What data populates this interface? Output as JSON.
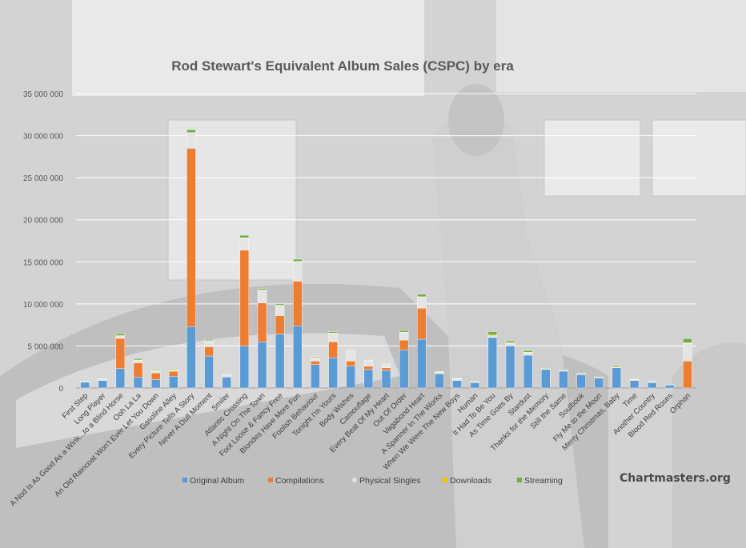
{
  "watermark": "Chartmasters.org",
  "chart_data": {
    "type": "bar",
    "stacked": true,
    "title": "Rod Stewart's Equivalent Album Sales (CSPC) by era",
    "ylim": [
      0,
      35000000
    ],
    "yticks": [
      0,
      5000000,
      10000000,
      15000000,
      20000000,
      25000000,
      30000000,
      35000000
    ],
    "ytick_labels": [
      "0",
      "5 000 000",
      "10 000 000",
      "15 000 000",
      "20 000 000",
      "25 000 000",
      "30 000 000",
      "35 000 000"
    ],
    "grid": true,
    "legend_position": "bottom",
    "categories": [
      "First Step",
      "Long Player",
      "A Nod Is As Good As a Wink...to a Blind Horse",
      "Ooh La La",
      "An Old Raincoat Won't Ever Let You Down",
      "Gasoline Alley",
      "Every Picture Tells A Story",
      "Never A Dull Moment",
      "Smiler",
      "Atlantic Crossing",
      "A Night On The Town",
      "Foot Loose & Fancy Free",
      "Blondes Have More Fun",
      "Foolish Behaviour",
      "Tonight I'm Yours",
      "Body Wishes",
      "Camouflage",
      "Every Beat Of My Heart",
      "Out Of Order",
      "Vagabond Heart",
      "A Spanner In The Works",
      "When We Were The New Boys",
      "Human",
      "It Had To Be You",
      "As Time Goes By",
      "Stardust",
      "Thanks for the Memory",
      "Still the Same",
      "Soulbook",
      "Fly Me to the Moon",
      "Merry Christmas, Baby",
      "Time",
      "Another Country",
      "Blood Red Roses",
      "Orphan"
    ],
    "series": [
      {
        "name": "Original Album",
        "color": "#5b9bd5",
        "values": [
          700000,
          900000,
          2300000,
          1300000,
          1000000,
          1400000,
          7300000,
          3800000,
          1300000,
          5000000,
          5500000,
          6400000,
          7400000,
          2800000,
          3600000,
          2600000,
          2200000,
          2100000,
          4500000,
          5800000,
          1700000,
          900000,
          650000,
          6000000,
          5000000,
          3900000,
          2200000,
          2000000,
          1600000,
          1200000,
          2400000,
          900000,
          650000,
          350000,
          0
        ]
      },
      {
        "name": "Compilations",
        "color": "#ed7d31",
        "values": [
          0,
          0,
          3600000,
          1700000,
          800000,
          600000,
          21200000,
          1100000,
          0,
          11400000,
          4600000,
          2200000,
          5300000,
          400000,
          1900000,
          600000,
          400000,
          300000,
          1200000,
          3700000,
          0,
          0,
          0,
          0,
          0,
          0,
          0,
          0,
          0,
          0,
          0,
          0,
          0,
          0,
          3200000
        ]
      },
      {
        "name": "Physical Singles",
        "color": "#e5e5e5",
        "values": [
          100000,
          250000,
          300000,
          300000,
          250000,
          150000,
          1800000,
          700000,
          300000,
          1400000,
          1500000,
          1200000,
          2300000,
          400000,
          1000000,
          1300000,
          700000,
          400000,
          900000,
          1300000,
          200000,
          200000,
          100000,
          200000,
          300000,
          300000,
          100000,
          100000,
          50000,
          50000,
          50000,
          100000,
          100000,
          50000,
          2100000
        ]
      },
      {
        "name": "Downloads",
        "color": "#ffc000",
        "values": [
          10000,
          10000,
          30000,
          30000,
          20000,
          20000,
          60000,
          30000,
          10000,
          60000,
          50000,
          40000,
          60000,
          20000,
          30000,
          20000,
          20000,
          20000,
          40000,
          50000,
          20000,
          20000,
          10000,
          100000,
          80000,
          60000,
          30000,
          30000,
          30000,
          20000,
          40000,
          30000,
          20000,
          10000,
          80000
        ]
      },
      {
        "name": "Streaming",
        "color": "#70ad47",
        "values": [
          10000,
          20000,
          200000,
          150000,
          100000,
          100000,
          350000,
          150000,
          50000,
          300000,
          150000,
          150000,
          250000,
          100000,
          150000,
          50000,
          50000,
          50000,
          200000,
          300000,
          50000,
          50000,
          20000,
          400000,
          200000,
          200000,
          100000,
          100000,
          50000,
          50000,
          150000,
          50000,
          20000,
          10000,
          500000
        ]
      }
    ]
  }
}
